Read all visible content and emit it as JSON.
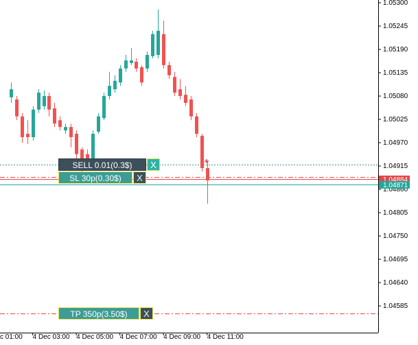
{
  "chart_data": {
    "type": "candlestick",
    "x": [
      2,
      2.25,
      2.5,
      2.75,
      3,
      3.25,
      3.5,
      3.75,
      4,
      4.25,
      4.5,
      4.75,
      5,
      5.25,
      5.5,
      5.75,
      6,
      6.25,
      6.5,
      6.75,
      7,
      7.25,
      7.5,
      7.75,
      8,
      8.25,
      8.5,
      8.75,
      9,
      9.25,
      9.5,
      9.75,
      10,
      10.25,
      10.5,
      10.75,
      11
    ],
    "open": [
      1.05077,
      1.05072,
      1.05032,
      1.04991,
      1.04983,
      1.05048,
      1.05056,
      1.0508,
      1.05051,
      1.05023,
      1.04999,
      1.05007,
      1.04991,
      1.04954,
      1.04943,
      1.04926,
      1.04996,
      1.05028,
      1.0508,
      1.05096,
      1.05112,
      1.05145,
      1.05158,
      1.05161,
      1.05148,
      1.05145,
      1.05174,
      1.05177,
      1.05226,
      1.05153,
      1.05125,
      1.05096,
      1.05083,
      1.05072,
      1.05032,
      1.04986,
      1.0491
    ],
    "high": [
      1.05112,
      1.0508,
      1.0504,
      1.05023,
      1.05056,
      1.05096,
      1.05093,
      1.05088,
      1.05064,
      1.05032,
      1.05015,
      1.05015,
      1.04999,
      1.04959,
      1.04954,
      1.04999,
      1.0504,
      1.05088,
      1.05137,
      1.05129,
      1.05153,
      1.05177,
      1.05193,
      1.05169,
      1.05153,
      1.05185,
      1.05234,
      1.05284,
      1.05258,
      1.05161,
      1.05137,
      1.0512,
      1.05104,
      1.0508,
      1.0504,
      1.04991,
      1.04926
    ],
    "low": [
      1.05064,
      1.05023,
      1.0497,
      1.04967,
      1.04975,
      1.0504,
      1.05048,
      1.05032,
      1.05007,
      1.04999,
      1.04991,
      1.04959,
      1.04926,
      1.04902,
      1.0491,
      1.04918,
      1.04991,
      1.05023,
      1.05072,
      1.05088,
      1.05104,
      1.05137,
      1.05153,
      1.05137,
      1.05104,
      1.05137,
      1.05169,
      1.05169,
      1.05145,
      1.0512,
      1.0508,
      1.05072,
      1.05056,
      1.05023,
      1.04983,
      1.04902,
      1.04826
    ],
    "close": [
      1.05096,
      1.05032,
      1.04983,
      1.04983,
      1.05048,
      1.05088,
      1.0508,
      1.05048,
      1.05015,
      1.05007,
      1.05007,
      1.04983,
      1.04943,
      1.04918,
      1.04922,
      1.04991,
      1.05032,
      1.0508,
      1.05104,
      1.05116,
      1.05145,
      1.05164,
      1.05164,
      1.05145,
      1.05112,
      1.05177,
      1.05226,
      1.05234,
      1.05153,
      1.05129,
      1.05088,
      1.0508,
      1.05064,
      1.05032,
      1.04991,
      1.0491,
      1.04881
    ],
    "up_color": "#26a69a",
    "down_color": "#ef5350",
    "xlim": [
      1.5,
      18.85
    ],
    "xticks": [
      {
        "value": 1,
        "label": "c 01:00"
      },
      {
        "value": 3,
        "label": "4 Dec 03:00"
      },
      {
        "value": 5,
        "label": "4 Dec 05:00"
      },
      {
        "value": 7,
        "label": "4 Dec 07:00"
      },
      {
        "value": 9,
        "label": "4 Dec 09:00"
      },
      {
        "value": 11,
        "label": "4 Dec 11:00"
      }
    ],
    "ylim": [
      1.04522,
      1.053065
    ],
    "yticks": [
      {
        "value": 1.053,
        "label": "1.05300"
      },
      1.05245,
      {
        "value": 1.0519,
        "label": "1.05190"
      },
      1.05135,
      {
        "value": 1.0508,
        "label": "1.05080"
      },
      1.05025,
      {
        "value": 1.0497,
        "label": "1.04970"
      },
      1.04915,
      {
        "value": 1.0486,
        "label": "1.04860"
      },
      1.04805,
      {
        "value": 1.0475,
        "label": "1.04750"
      },
      1.04695,
      {
        "value": 1.0464,
        "label": "1.04640"
      },
      1.04585
    ],
    "levels": [
      {
        "value": 1.04918,
        "color": "#3e8f93",
        "style": "dotted"
      },
      {
        "value": 1.04889,
        "color": "#e0484c",
        "style": "dashdot"
      },
      {
        "value": 1.04884,
        "color": "#e0484c",
        "style": "solid",
        "badge": true
      },
      {
        "value": 1.04871,
        "color": "#26a69a",
        "style": "solid",
        "badge": true
      },
      {
        "value": 1.04567,
        "color": "#e0484c",
        "style": "dashdot"
      }
    ]
  },
  "trade_panel": {
    "sell": "SELL 0.01(0.3$)",
    "sl": "SL 30p(0.30$)",
    "tp": "TP 350p(3.50$)",
    "close": "X"
  }
}
